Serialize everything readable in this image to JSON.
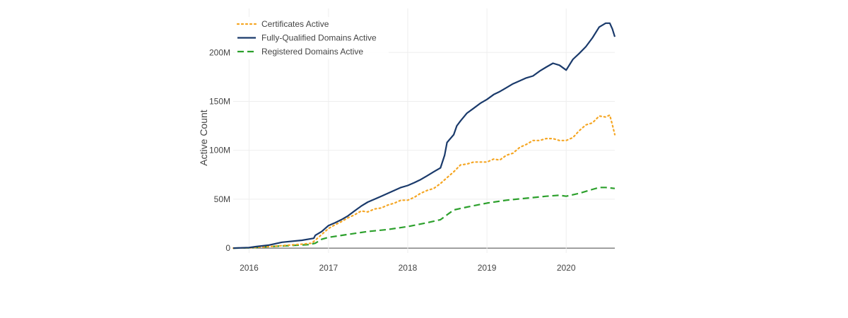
{
  "chart_data": {
    "type": "line",
    "title": "",
    "xlabel": "",
    "ylabel": "Active Count",
    "x_ticks": [
      "2016",
      "2017",
      "2018",
      "2019",
      "2020"
    ],
    "y_ticks": [
      "0",
      "50M",
      "100M",
      "150M",
      "200M"
    ],
    "xlim": [
      "2015-10-20",
      "2020-08-12"
    ],
    "ylim": [
      -5,
      245
    ],
    "y_unit": "millions",
    "grid": true,
    "legend_position": "top-left",
    "series": [
      {
        "name": "Certificates Active",
        "color": "#f5a623",
        "dash": "dotted",
        "points": [
          [
            "2015-10-20",
            0
          ],
          [
            "2016-01-01",
            0.3
          ],
          [
            "2016-04-01",
            1.5
          ],
          [
            "2016-07-01",
            3
          ],
          [
            "2016-09-01",
            4
          ],
          [
            "2016-10-15",
            5
          ],
          [
            "2016-11-01",
            8
          ],
          [
            "2016-12-01",
            14
          ],
          [
            "2017-01-01",
            20
          ],
          [
            "2017-02-01",
            24
          ],
          [
            "2017-03-01",
            27
          ],
          [
            "2017-04-01",
            31
          ],
          [
            "2017-05-01",
            34
          ],
          [
            "2017-06-01",
            38
          ],
          [
            "2017-07-01",
            37
          ],
          [
            "2017-08-01",
            40
          ],
          [
            "2017-09-01",
            41
          ],
          [
            "2017-10-01",
            44
          ],
          [
            "2017-11-01",
            46
          ],
          [
            "2017-12-01",
            49
          ],
          [
            "2018-01-01",
            49
          ],
          [
            "2018-02-01",
            52
          ],
          [
            "2018-03-01",
            56
          ],
          [
            "2018-04-01",
            59
          ],
          [
            "2018-05-01",
            61
          ],
          [
            "2018-06-01",
            66
          ],
          [
            "2018-07-01",
            72
          ],
          [
            "2018-08-01",
            78
          ],
          [
            "2018-09-01",
            85
          ],
          [
            "2018-10-01",
            86
          ],
          [
            "2018-11-01",
            88
          ],
          [
            "2018-12-01",
            88
          ],
          [
            "2019-01-01",
            88
          ],
          [
            "2019-02-01",
            91
          ],
          [
            "2019-03-01",
            90
          ],
          [
            "2019-04-01",
            95
          ],
          [
            "2019-05-01",
            97
          ],
          [
            "2019-06-01",
            103
          ],
          [
            "2019-07-01",
            106
          ],
          [
            "2019-08-01",
            110
          ],
          [
            "2019-09-01",
            110
          ],
          [
            "2019-10-01",
            112
          ],
          [
            "2019-11-01",
            112
          ],
          [
            "2019-12-01",
            110
          ],
          [
            "2020-01-01",
            110
          ],
          [
            "2020-02-01",
            113
          ],
          [
            "2020-03-01",
            120
          ],
          [
            "2020-04-01",
            126
          ],
          [
            "2020-05-01",
            128
          ],
          [
            "2020-06-01",
            135
          ],
          [
            "2020-07-01",
            134
          ],
          [
            "2020-07-20",
            136
          ],
          [
            "2020-08-01",
            126
          ],
          [
            "2020-08-12",
            116
          ]
        ]
      },
      {
        "name": "Fully-Qualified Domains Active",
        "color": "#1a3a6b",
        "dash": "solid",
        "points": [
          [
            "2015-10-20",
            0
          ],
          [
            "2016-01-01",
            0.5
          ],
          [
            "2016-02-01",
            1.5
          ],
          [
            "2016-04-01",
            3
          ],
          [
            "2016-06-01",
            6
          ],
          [
            "2016-09-01",
            8
          ],
          [
            "2016-10-25",
            10
          ],
          [
            "2016-11-01",
            13
          ],
          [
            "2016-12-01",
            17
          ],
          [
            "2017-01-01",
            23
          ],
          [
            "2017-02-01",
            26
          ],
          [
            "2017-03-01",
            29
          ],
          [
            "2017-04-01",
            33
          ],
          [
            "2017-05-01",
            38
          ],
          [
            "2017-06-01",
            43
          ],
          [
            "2017-07-01",
            47
          ],
          [
            "2017-08-01",
            50
          ],
          [
            "2017-09-01",
            53
          ],
          [
            "2017-10-01",
            56
          ],
          [
            "2017-11-01",
            59
          ],
          [
            "2017-12-01",
            62
          ],
          [
            "2018-01-01",
            64
          ],
          [
            "2018-02-01",
            67
          ],
          [
            "2018-03-01",
            70
          ],
          [
            "2018-04-01",
            74
          ],
          [
            "2018-05-01",
            78
          ],
          [
            "2018-06-01",
            82
          ],
          [
            "2018-06-20",
            95
          ],
          [
            "2018-07-01",
            108
          ],
          [
            "2018-08-01",
            116
          ],
          [
            "2018-08-15",
            125
          ],
          [
            "2018-09-01",
            130
          ],
          [
            "2018-10-01",
            138
          ],
          [
            "2018-11-01",
            143
          ],
          [
            "2018-12-01",
            148
          ],
          [
            "2019-01-01",
            152
          ],
          [
            "2019-02-01",
            157
          ],
          [
            "2019-03-01",
            160
          ],
          [
            "2019-04-01",
            164
          ],
          [
            "2019-05-01",
            168
          ],
          [
            "2019-06-01",
            171
          ],
          [
            "2019-07-01",
            174
          ],
          [
            "2019-08-01",
            176
          ],
          [
            "2019-09-01",
            181
          ],
          [
            "2019-10-01",
            185
          ],
          [
            "2019-11-01",
            189
          ],
          [
            "2019-12-01",
            187
          ],
          [
            "2020-01-01",
            182
          ],
          [
            "2020-02-01",
            193
          ],
          [
            "2020-03-01",
            199
          ],
          [
            "2020-04-01",
            206
          ],
          [
            "2020-05-01",
            215
          ],
          [
            "2020-06-01",
            226
          ],
          [
            "2020-07-01",
            230
          ],
          [
            "2020-07-20",
            230
          ],
          [
            "2020-08-01",
            224
          ],
          [
            "2020-08-12",
            216
          ]
        ]
      },
      {
        "name": "Registered Domains Active",
        "color": "#2ca02c",
        "dash": "dashed",
        "points": [
          [
            "2015-10-20",
            0
          ],
          [
            "2016-01-01",
            0.3
          ],
          [
            "2016-04-01",
            1.5
          ],
          [
            "2016-07-01",
            2.5
          ],
          [
            "2016-10-01",
            3.5
          ],
          [
            "2016-11-01",
            5
          ],
          [
            "2016-12-01",
            9
          ],
          [
            "2017-01-01",
            11
          ],
          [
            "2017-04-01",
            14
          ],
          [
            "2017-07-01",
            17
          ],
          [
            "2017-10-01",
            19
          ],
          [
            "2018-01-01",
            22
          ],
          [
            "2018-04-01",
            26
          ],
          [
            "2018-06-01",
            29
          ],
          [
            "2018-07-01",
            34
          ],
          [
            "2018-08-01",
            39
          ],
          [
            "2018-10-01",
            42
          ],
          [
            "2019-01-01",
            46
          ],
          [
            "2019-04-01",
            49
          ],
          [
            "2019-07-01",
            51
          ],
          [
            "2019-10-01",
            53
          ],
          [
            "2019-12-01",
            54
          ],
          [
            "2020-01-01",
            53
          ],
          [
            "2020-03-01",
            56
          ],
          [
            "2020-05-01",
            60
          ],
          [
            "2020-06-01",
            62
          ],
          [
            "2020-07-01",
            62
          ],
          [
            "2020-08-12",
            61
          ]
        ]
      }
    ]
  }
}
